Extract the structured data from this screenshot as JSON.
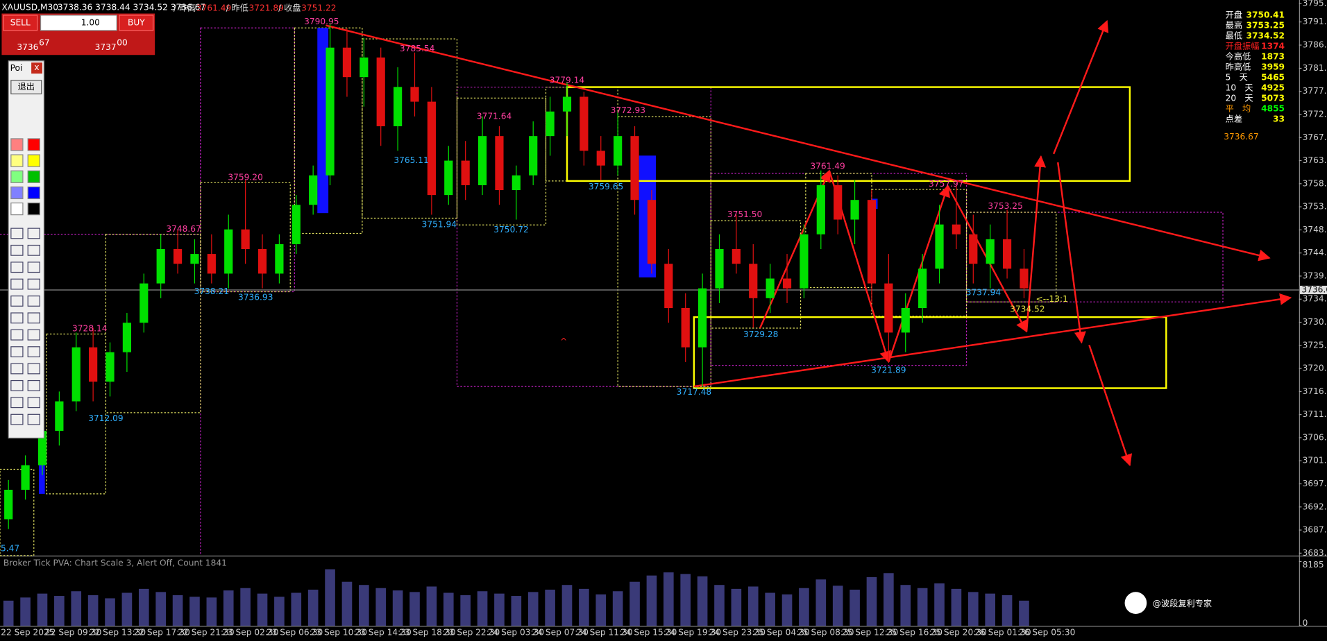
{
  "header": {
    "symbol": "XAUUSD,M30",
    "quote": "3738.36 3738.44 3734.52 3736.67",
    "items": [
      {
        "label": "/ 昨高",
        "value": "3761.49"
      },
      {
        "label": "/ 昨低",
        "value": "3721.89"
      },
      {
        "label": "/ 收盘",
        "value": "3751.22"
      }
    ]
  },
  "trade_panel": {
    "sell": "SELL",
    "buy": "BUY",
    "lot": "1.00",
    "bid_big": "3736",
    "bid_small": "67",
    "ask_big": "3737",
    "ask_small": "00"
  },
  "toolbox": {
    "title": "Poi",
    "close": "x",
    "exit": "退出"
  },
  "info_panel": {
    "rows": [
      {
        "label": "开盘",
        "value": "3750.41",
        "color": "#ffff00"
      },
      {
        "label": "最高",
        "value": "3753.25",
        "color": "#ffff00"
      },
      {
        "label": "最低",
        "value": "3734.52",
        "color": "#ffff00"
      },
      {
        "label": "开盘振幅",
        "value": "1374",
        "color": "#ff2020"
      },
      {
        "label": "今高低",
        "value": "1873",
        "color": "#ffff00"
      },
      {
        "label": "昨高低",
        "value": "3959",
        "color": "#ffff00"
      },
      {
        "label": "5　天",
        "value": "5465",
        "color": "#ffff00"
      },
      {
        "label": "10　天",
        "value": "4925",
        "color": "#ffff00"
      },
      {
        "label": "20　天",
        "value": "5073",
        "color": "#ffff00"
      },
      {
        "label": "平　均",
        "value": "4855",
        "color": "#00ff00"
      },
      {
        "label": "点差",
        "value": "33",
        "color": "#ffff00"
      }
    ],
    "price": "3736.67"
  },
  "chart_data": {
    "type": "candlestick",
    "up_color": "#00e000",
    "down_color": "#e01010",
    "ylim": [
      3682.6,
      3795.7
    ],
    "yticks": [
      {
        "value": 3795,
        "label": "3795.0"
      },
      3791.23,
      3786.52,
      {
        "value": 3781.8,
        "label": "3781.80"
      },
      {
        "value": 3777.1,
        "label": "3777.10"
      },
      {
        "value": 3772.4,
        "label": "3772.40"
      },
      {
        "value": 3767.7,
        "label": "3767.70"
      },
      {
        "value": 3763,
        "label": "3763.00"
      },
      {
        "value": 3758.3,
        "label": "3758.30"
      },
      {
        "value": 3753.6,
        "label": "3753.60"
      },
      {
        "value": 3748.9,
        "label": "3748.90"
      },
      {
        "value": 3744.2,
        "label": "3744.20"
      },
      {
        "value": 3739.5,
        "label": "3739.50"
      },
      {
        "value": 3734.8,
        "label": "3734.80"
      },
      {
        "value": 3730.1,
        "label": "3730.10"
      },
      {
        "value": 3725.4,
        "label": "3725.40"
      },
      {
        "value": 3720.7,
        "label": "3720.70"
      },
      {
        "value": 3716,
        "label": "3716.00"
      },
      {
        "value": 3711.3,
        "label": "3711.30"
      },
      {
        "value": 3706.6,
        "label": "3706.60"
      },
      {
        "value": 3701.9,
        "label": "3701.90"
      },
      {
        "value": 3697.2,
        "label": "3697.20"
      },
      {
        "value": 3692.5,
        "label": "3692.50"
      },
      {
        "value": 3687.8,
        "label": "3687.80"
      },
      {
        "value": 3683.1,
        "label": "3683.10"
      }
    ],
    "last_price": 3736.67,
    "ohlc": [
      [
        3690,
        3698,
        3688,
        3696
      ],
      [
        3696,
        3703,
        3694,
        3701
      ],
      [
        3701,
        3710,
        3699,
        3708
      ],
      [
        3708,
        3716,
        3705,
        3714
      ],
      [
        3714,
        3728,
        3712,
        3725
      ],
      [
        3725,
        3729,
        3714,
        3718
      ],
      [
        3718,
        3726,
        3715,
        3724
      ],
      [
        3724,
        3732,
        3720,
        3730
      ],
      [
        3730,
        3740,
        3728,
        3738
      ],
      [
        3738,
        3748,
        3735,
        3745
      ],
      [
        3745,
        3749,
        3740,
        3742
      ],
      [
        3742,
        3747,
        3738,
        3744
      ],
      [
        3744,
        3748,
        3738,
        3740
      ],
      [
        3740,
        3752,
        3737,
        3749
      ],
      [
        3749,
        3759,
        3742,
        3745
      ],
      [
        3745,
        3748,
        3737,
        3740
      ],
      [
        3740,
        3748,
        3738,
        3746
      ],
      [
        3746,
        3756,
        3744,
        3754
      ],
      [
        3754,
        3762,
        3752,
        3760
      ],
      [
        3760,
        3791,
        3758,
        3786
      ],
      [
        3786,
        3790,
        3776,
        3780
      ],
      [
        3780,
        3788,
        3774,
        3784
      ],
      [
        3784,
        3786,
        3766,
        3770
      ],
      [
        3770,
        3782,
        3765,
        3778
      ],
      [
        3778,
        3785,
        3772,
        3775
      ],
      [
        3775,
        3778,
        3752,
        3756
      ],
      [
        3756,
        3766,
        3754,
        3763
      ],
      [
        3763,
        3767,
        3755,
        3758
      ],
      [
        3758,
        3772,
        3756,
        3768
      ],
      [
        3768,
        3770,
        3754,
        3757
      ],
      [
        3757,
        3762,
        3751,
        3760
      ],
      [
        3760,
        3771,
        3758,
        3768
      ],
      [
        3768,
        3776,
        3764,
        3773
      ],
      [
        3773,
        3779,
        3768,
        3776
      ],
      [
        3776,
        3777,
        3762,
        3765
      ],
      [
        3765,
        3768,
        3759,
        3762
      ],
      [
        3762,
        3773,
        3760,
        3768
      ],
      [
        3768,
        3770,
        3752,
        3755
      ],
      [
        3755,
        3757,
        3740,
        3742
      ],
      [
        3742,
        3745,
        3730,
        3733
      ],
      [
        3733,
        3736,
        3722,
        3725
      ],
      [
        3725,
        3740,
        3717,
        3737
      ],
      [
        3737,
        3748,
        3734,
        3745
      ],
      [
        3745,
        3752,
        3740,
        3742
      ],
      [
        3742,
        3746,
        3729,
        3735
      ],
      [
        3735,
        3742,
        3732,
        3739
      ],
      [
        3739,
        3744,
        3734,
        3737
      ],
      [
        3737,
        3750,
        3735,
        3748
      ],
      [
        3748,
        3761,
        3745,
        3758
      ],
      [
        3758,
        3760,
        3748,
        3751
      ],
      [
        3751,
        3759,
        3746,
        3755
      ],
      [
        3755,
        3757,
        3734,
        3738
      ],
      [
        3738,
        3744,
        3722,
        3728
      ],
      [
        3728,
        3736,
        3724,
        3733
      ],
      [
        3733,
        3744,
        3730,
        3741
      ],
      [
        3741,
        3754,
        3738,
        3750
      ],
      [
        3750,
        3758,
        3745,
        3748
      ],
      [
        3748,
        3752,
        3738,
        3742
      ],
      [
        3742,
        3750,
        3737,
        3747
      ],
      [
        3747,
        3753,
        3739,
        3741
      ],
      [
        3741,
        3745,
        3735,
        3737
      ]
    ],
    "high_label_color": "#ff3fa0",
    "low_label_color": "#30b0ff",
    "high_labels": [
      "3790.95",
      "3785.54",
      "3779.14",
      "3772.93",
      "3771.64",
      "3759.20",
      "3748.67",
      "3728.14",
      "3761.49",
      "3751.50",
      "3757.97",
      "3753.25"
    ],
    "low_labels": [
      "3765.11",
      "3751.94",
      "3750.72",
      "3759.65",
      "3738.21",
      "3736.93",
      "3712.09",
      "3717.48",
      "3729.28",
      "3721.89",
      "3737.94",
      "5.47"
    ],
    "yellow_labels": [
      "3734.52",
      "<--13:1"
    ],
    "marker": "^",
    "time_labels": [
      "22 Sep 2025",
      "22 Sep 09:30",
      "22 Sep 13:30",
      "22 Sep 17:30",
      "22 Sep 21:30",
      "23 Sep 02:30",
      "23 Sep 06:30",
      "23 Sep 10:30",
      "23 Sep 14:30",
      "23 Sep 18:30",
      "23 Sep 22:30",
      "24 Sep 03:30",
      "24 Sep 07:30",
      "24 Sep 11:30",
      "24 Sep 15:30",
      "24 Sep 19:30",
      "24 Sep 23:30",
      "25 Sep 04:30",
      "25 Sep 08:30",
      "25 Sep 12:30",
      "25 Sep 16:30",
      "25 Sep 20:30",
      "26 Sep 01:30",
      "26 Sep 05:30"
    ],
    "volume": {
      "title": "Broker Tick PVA:  Chart Scale  3,  Alert Off,  Count  1841",
      "color": "#3a3a78",
      "ylim": [
        0,
        8185
      ],
      "yticks": [
        0,
        8185
      ],
      "values": [
        3200,
        3600,
        4100,
        3800,
        4400,
        3900,
        3500,
        4200,
        4700,
        4300,
        3900,
        3700,
        3600,
        4500,
        4800,
        4100,
        3700,
        4200,
        4600,
        7200,
        5600,
        5200,
        4800,
        4500,
        4300,
        5000,
        4200,
        3900,
        4400,
        4100,
        3800,
        4300,
        4600,
        5200,
        4700,
        4000,
        4400,
        5600,
        6400,
        6800,
        6600,
        6300,
        5200,
        4700,
        5000,
        4200,
        4000,
        4800,
        5900,
        5100,
        4600,
        6200,
        6700,
        5200,
        4800,
        5400,
        4700,
        4300,
        4100,
        3900,
        3200
      ]
    }
  },
  "watermark": "@波段复利专家"
}
